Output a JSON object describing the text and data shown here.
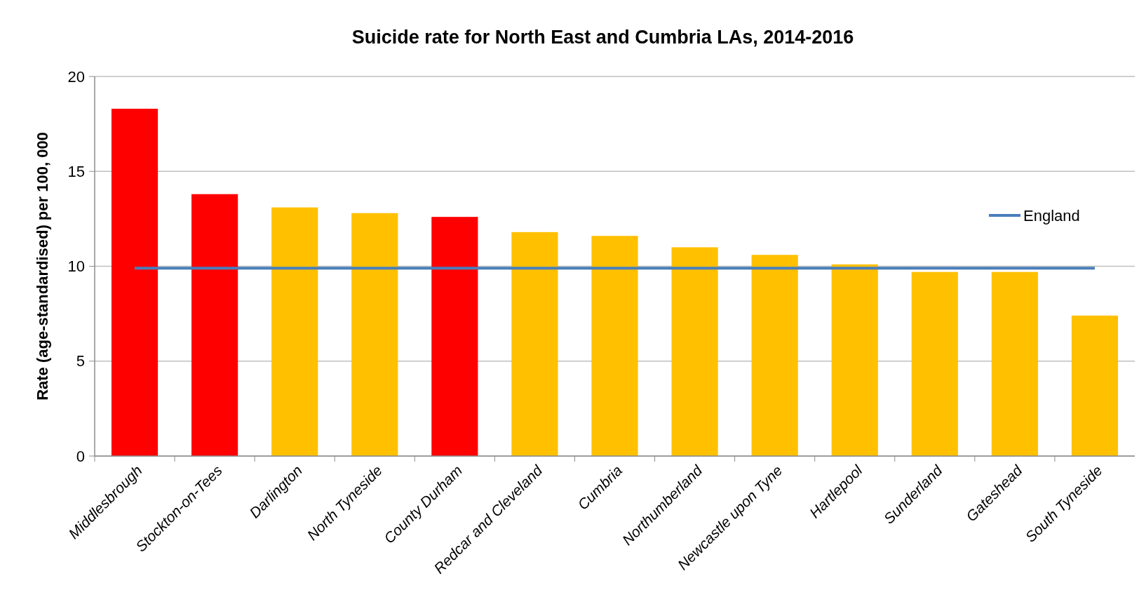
{
  "chart_data": {
    "type": "bar",
    "title": "Suicide rate for North East and Cumbria LAs, 2014-2016",
    "ylabel": "Rate (age-standardised) per 100, 000",
    "categories": [
      "Middlesbrough",
      "Stockton-on-Tees",
      "Darlington",
      "North Tyneside",
      "County Durham",
      "Redcar and Cleveland",
      "Cumbria",
      "Northumberland",
      "Newcastle upon Tyne",
      "Hartlepool",
      "Sunderland",
      "Gateshead",
      "South Tyneside"
    ],
    "series": [
      {
        "colors": [
          "#ff0000",
          "#ff0000",
          "#ffc000",
          "#ffc000",
          "#ff0000",
          "#ffc000",
          "#ffc000",
          "#ffc000",
          "#ffc000",
          "#ffc000",
          "#ffc000",
          "#ffc000",
          "#ffc000"
        ],
        "values": [
          18.3,
          13.8,
          13.1,
          12.8,
          12.6,
          11.8,
          11.6,
          11.0,
          10.6,
          10.1,
          9.7,
          9.7,
          7.4
        ]
      },
      {
        "type": "line",
        "name": "England",
        "color": "#4a7ebb",
        "values": [
          9.9,
          9.9,
          9.9,
          9.9,
          9.9,
          9.9,
          9.9,
          9.9,
          9.9,
          9.9,
          9.9,
          9.9,
          9.9
        ]
      }
    ],
    "ylim": [
      0,
      20
    ],
    "yticks": [
      0,
      5,
      10,
      15,
      20
    ],
    "grid": "y",
    "legend": "right",
    "marker": "none"
  }
}
